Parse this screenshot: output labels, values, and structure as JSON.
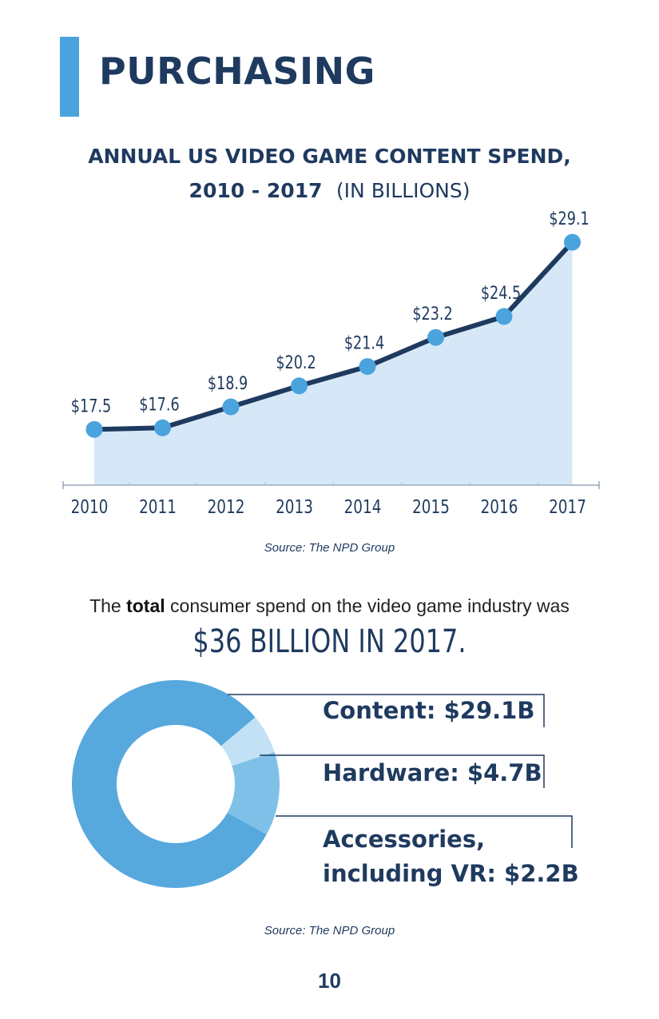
{
  "page": {
    "title": "PURCHASING",
    "number": "10"
  },
  "colors": {
    "accent": "#4aa3dd",
    "navy": "#1f3a5f",
    "area_fill": "#d6e8f7",
    "point": "#4aa3dd"
  },
  "chart_data": [
    {
      "type": "line",
      "title": "ANNUAL US VIDEO GAME CONTENT SPEND,",
      "title_line2_bold": "2010 - 2017",
      "title_line2_normal": "(IN BILLIONS)",
      "x": [
        "2010",
        "2011",
        "2012",
        "2013",
        "2014",
        "2015",
        "2016",
        "2017"
      ],
      "values": [
        17.5,
        17.6,
        18.9,
        20.2,
        21.4,
        23.2,
        24.5,
        29.1
      ],
      "labels": [
        "$17.5",
        "$17.6",
        "$18.9",
        "$20.2",
        "$21.4",
        "$23.2",
        "$24.5",
        "$29.1"
      ],
      "ylim": [
        14,
        29.5
      ],
      "area": true,
      "grid": false,
      "source": "Source: The NPD Group"
    },
    {
      "type": "pie",
      "donut": true,
      "slices": [
        {
          "name": "Content",
          "value": 29.1,
          "label": "Content: $29.1B",
          "color": "#56a8dd"
        },
        {
          "name": "Hardware",
          "value": 4.7,
          "label": "Hardware: $4.7B",
          "color": "#7fc0e8"
        },
        {
          "name": "Accessories",
          "value": 2.2,
          "label_line1": "Accessories,",
          "label_line2": "including VR: $2.2B",
          "color": "#c2e1f5"
        }
      ],
      "source": "Source: The NPD Group"
    }
  ],
  "summary": {
    "prefix": "The ",
    "bold": "total",
    "suffix": " consumer spend on the video game industry was",
    "big": "$36 BILLION IN 2017."
  }
}
